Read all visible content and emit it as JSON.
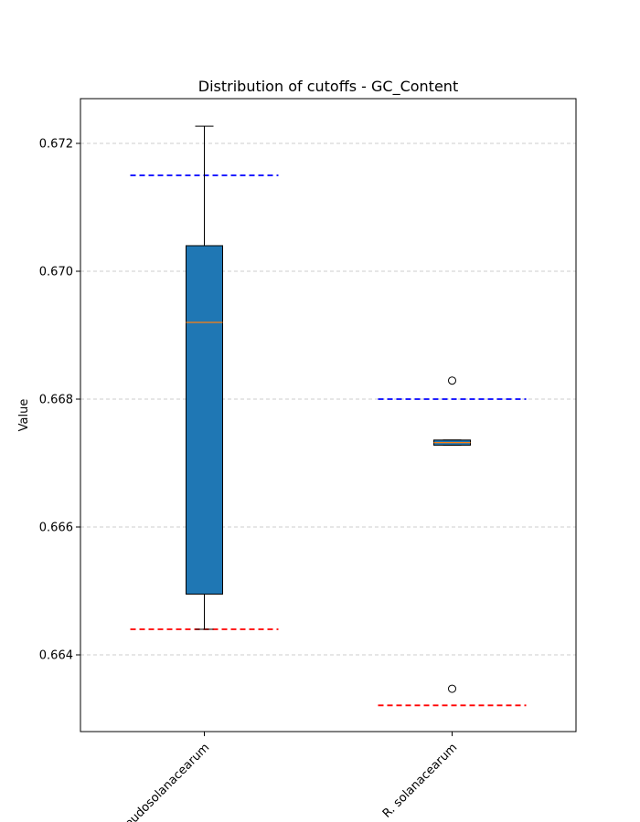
{
  "chart_data": {
    "type": "box",
    "title": "Distribution of cutoffs - GC_Content",
    "xlabel": "",
    "ylabel": "Value",
    "ylim": [
      0.6628,
      0.6727
    ],
    "yticks": [
      "0.664",
      "0.666",
      "0.668",
      "0.670",
      "0.672"
    ],
    "ytick_values": [
      0.664,
      0.666,
      0.668,
      0.67,
      0.672
    ],
    "grid": "y-dashed",
    "categories": [
      "R. pseudosolanacearum",
      "R. solanacearum"
    ],
    "boxes": [
      {
        "category": "R. pseudosolanacearum",
        "whisker_low": 0.6644,
        "q1": 0.66495,
        "median": 0.6692,
        "q3": 0.6704,
        "whisker_high": 0.67227,
        "outliers": [],
        "upper_cutoff": 0.6715,
        "lower_cutoff": 0.6644
      },
      {
        "category": "R. solanacearum",
        "whisker_low": 0.66728,
        "q1": 0.66728,
        "median": 0.66732,
        "q3": 0.66736,
        "whisker_high": 0.66736,
        "outliers": [
          0.66829,
          0.66347
        ],
        "upper_cutoff": 0.668,
        "lower_cutoff": 0.66321
      }
    ],
    "colors": {
      "box_fill": "#1f77b4",
      "median": "#ff7f0e",
      "upper_cutoff": "#0000ff",
      "lower_cutoff": "#ff0000",
      "grid": "#cccccc"
    }
  }
}
